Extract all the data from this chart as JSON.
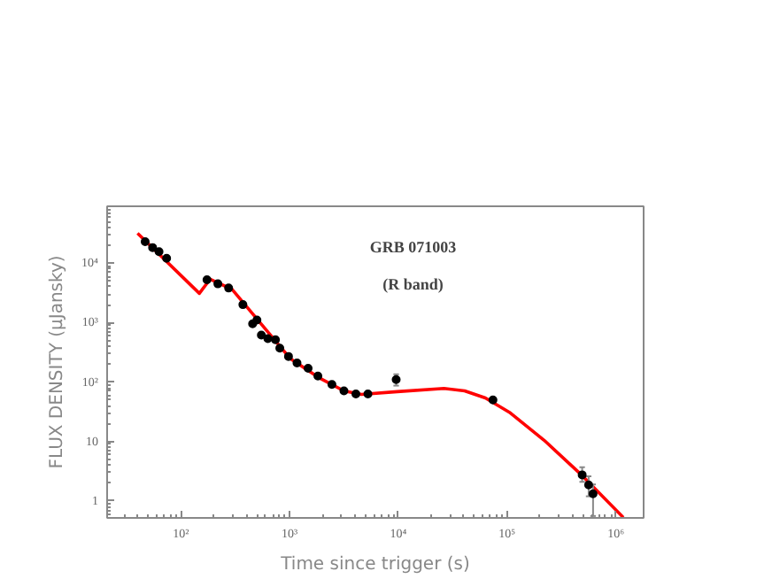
{
  "chart_data": {
    "type": "scatter",
    "xlabel": "Time since trigger (s)",
    "ylabel": "FLUX DENSITY (μJansky)",
    "annotations": [
      "GRB 071003",
      "(R band)"
    ],
    "log": "xy",
    "grid": false,
    "marker": "circle",
    "xlim": [
      21,
      1800000
    ],
    "ylim": [
      0.52,
      90000
    ],
    "xticks": [
      {
        "value": 100,
        "label": "10²"
      },
      {
        "value": 1000,
        "label": "10³"
      },
      {
        "value": 10000,
        "label": "10⁴"
      },
      {
        "value": 100000,
        "label": "10⁵"
      },
      {
        "value": 1000000,
        "label": "10⁶"
      }
    ],
    "yticks": [
      1,
      10,
      {
        "value": 100,
        "label": "10²"
      },
      {
        "value": 1000,
        "label": "10³"
      },
      {
        "value": 10000,
        "label": "10⁴"
      }
    ],
    "series": [
      {
        "color": "#000000",
        "x": [
          47,
          55,
          63,
          74,
          174,
          219,
          275,
          372,
          457,
          501,
          550,
          631,
          741,
          813,
          977,
          1170,
          1480,
          1820,
          2450,
          3160,
          4070,
          5250,
          9550,
          74100,
          490000,
          562000,
          617000
        ],
        "values": [
          22900,
          18200,
          15500,
          12000,
          5250,
          4470,
          3800,
          2000,
          955,
          1100,
          617,
          537,
          513,
          372,
          269,
          209,
          170,
          126,
          91,
          71,
          63,
          63,
          110,
          50,
          2.75,
          1.86,
          1.32
        ],
        "errors": [
          null,
          null,
          null,
          null,
          null,
          null,
          null,
          null,
          null,
          null,
          null,
          null,
          null,
          null,
          null,
          null,
          null,
          null,
          null,
          null,
          null,
          null,
          [
            87,
            135
          ],
          null,
          [
            2.1,
            3.7
          ],
          [
            1.2,
            2.6
          ],
          [
            0.56,
            1.9
          ]
        ]
      },
      {
        "type": "line",
        "color": "#ff0000",
        "marker": "none",
        "line_style": "solid",
        "x": [
          40,
          148,
          186,
          295,
          1020,
          1910,
          3160,
          4570,
          9770,
          26300,
          40700,
          63100,
          105000,
          219000,
          468000,
          1170000
        ],
        "values": [
          31600,
          3090,
          5370,
          3630,
          245,
          115,
          71,
          62,
          69,
          78,
          71,
          54,
          31,
          10.5,
          2.9,
          0.53
        ]
      }
    ]
  }
}
